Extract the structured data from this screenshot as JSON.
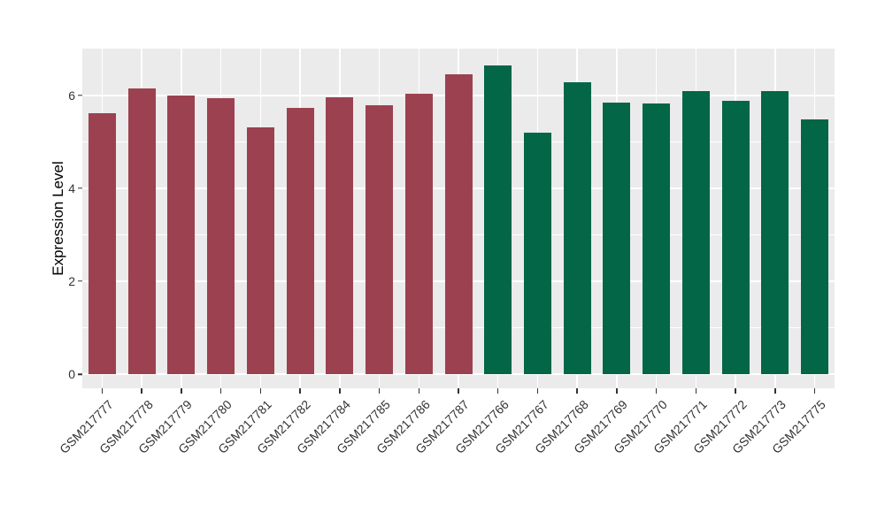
{
  "chart_data": {
    "type": "bar",
    "title": "",
    "xlabel": "",
    "ylabel": "Expression Level",
    "ylim": [
      0,
      6.96
    ],
    "yticks": [
      0,
      2,
      4,
      6
    ],
    "yticks_minor": [
      1,
      3,
      5
    ],
    "grid": "on",
    "legend": "none",
    "panel_bg": "#EBEBEB",
    "grid_color": "#FFFFFF",
    "axis_text_color": "#333333",
    "colors": {
      "group1": "#9C4150",
      "group2": "#026647"
    },
    "bars": [
      {
        "label": "GSM217777",
        "value": 5.62,
        "group": "group1"
      },
      {
        "label": "GSM217778",
        "value": 6.15,
        "group": "group1"
      },
      {
        "label": "GSM217779",
        "value": 5.99,
        "group": "group1"
      },
      {
        "label": "GSM217780",
        "value": 5.93,
        "group": "group1"
      },
      {
        "label": "GSM217781",
        "value": 5.31,
        "group": "group1"
      },
      {
        "label": "GSM217782",
        "value": 5.72,
        "group": "group1"
      },
      {
        "label": "GSM217784",
        "value": 5.96,
        "group": "group1"
      },
      {
        "label": "GSM217785",
        "value": 5.78,
        "group": "group1"
      },
      {
        "label": "GSM217786",
        "value": 6.03,
        "group": "group1"
      },
      {
        "label": "GSM217787",
        "value": 6.44,
        "group": "group1"
      },
      {
        "label": "GSM217766",
        "value": 6.64,
        "group": "group2"
      },
      {
        "label": "GSM217767",
        "value": 5.2,
        "group": "group2"
      },
      {
        "label": "GSM217768",
        "value": 6.27,
        "group": "group2"
      },
      {
        "label": "GSM217769",
        "value": 5.84,
        "group": "group2"
      },
      {
        "label": "GSM217770",
        "value": 5.82,
        "group": "group2"
      },
      {
        "label": "GSM217771",
        "value": 6.09,
        "group": "group2"
      },
      {
        "label": "GSM217772",
        "value": 5.88,
        "group": "group2"
      },
      {
        "label": "GSM217773",
        "value": 6.09,
        "group": "group2"
      },
      {
        "label": "GSM217775",
        "value": 5.48,
        "group": "group2"
      }
    ]
  }
}
